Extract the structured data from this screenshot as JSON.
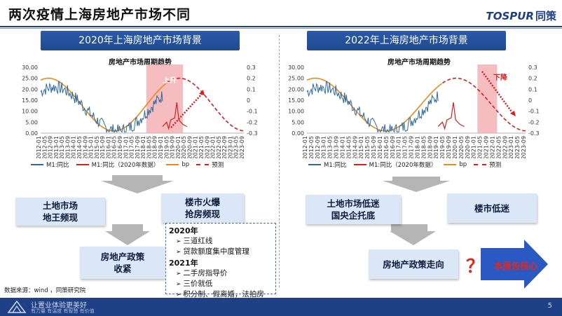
{
  "page_title": "两次疫情上海房地产市场不同",
  "logo": {
    "latin": "TOSPUR",
    "cn": "同策"
  },
  "left": {
    "banner": "2020年上海房地产市场背景",
    "chart_title": "房地产市场周期趋势",
    "annotation": "上升",
    "y_left_ticks": [
      "30.00",
      "25.00",
      "20.00",
      "15.00",
      "10.00",
      "5.00",
      "0.00"
    ],
    "y_right_ticks": [
      "0.3",
      "0.2",
      "0.1",
      "0",
      "-0.1",
      "-0.2",
      "-0.3"
    ],
    "legend": [
      "M1:同比",
      "M1:同比（2020年数据）",
      "bp",
      "预测"
    ],
    "box_land": "土地市场\n地王频现",
    "box_market": "楼市火爆\n抢房频现",
    "box_policy": "房地产政策\n收紧"
  },
  "right": {
    "banner": "2022年上海房地产市场背景",
    "chart_title": "房地产市场周期趋势",
    "annotation": "下降",
    "y_left_ticks": [
      "30.00",
      "25.00",
      "20.00",
      "15.00",
      "10.00",
      "5.00",
      "0.00"
    ],
    "y_right_ticks": [
      "0.3",
      "0.2",
      "0.1",
      "0",
      "-0.1",
      "-0.2",
      "-0.3"
    ],
    "legend": [
      "M1:同比",
      "M1:同比（2020年数据）",
      "bp",
      "预测"
    ],
    "box_land": "土地市场低迷\n国央企托底",
    "box_market": "楼市低迷",
    "box_direction": "房地产政策走向",
    "qmark": "？",
    "report_core": "本报告核心"
  },
  "policy_list": {
    "year1": "2020年",
    "items1": [
      "三道红线",
      "贷款额度集中度管理"
    ],
    "year2": "2021年",
    "items2": [
      "二手房指导价",
      "三价就低",
      "积分制、假离婚，法拍房"
    ]
  },
  "x_ticks": [
    "2012-01",
    "2012-05",
    "2012-09",
    "2013-01",
    "2013-05",
    "2013-09",
    "2014-01",
    "2014-05",
    "2014-09",
    "2015-01",
    "2015-05",
    "2015-09",
    "2016-01",
    "2016-05",
    "2016-09",
    "2017-01",
    "2017-05",
    "2017-09",
    "2018-01",
    "2018-05",
    "2018-09",
    "2019-01",
    "2019-05",
    "2019-09",
    "2020-01",
    "2020-05",
    "2020-09",
    "2021-01",
    "2021-05",
    "2021-09",
    "2022-01",
    "2022-05",
    "2022-09",
    "2023-01",
    "2023-05",
    "2023-09"
  ],
  "source": "数据来源：wind ，同策研究院",
  "footer": {
    "main": "让置业体验更美好",
    "sub": "有力量 有温度 有智慧 有价值",
    "page": "5"
  },
  "colors": {
    "m1": "#2f6a9e",
    "m1_2020": "#d62020",
    "bp": "#ee8a1a",
    "forecast": "#d62020",
    "accent": "#1f3f86"
  }
}
